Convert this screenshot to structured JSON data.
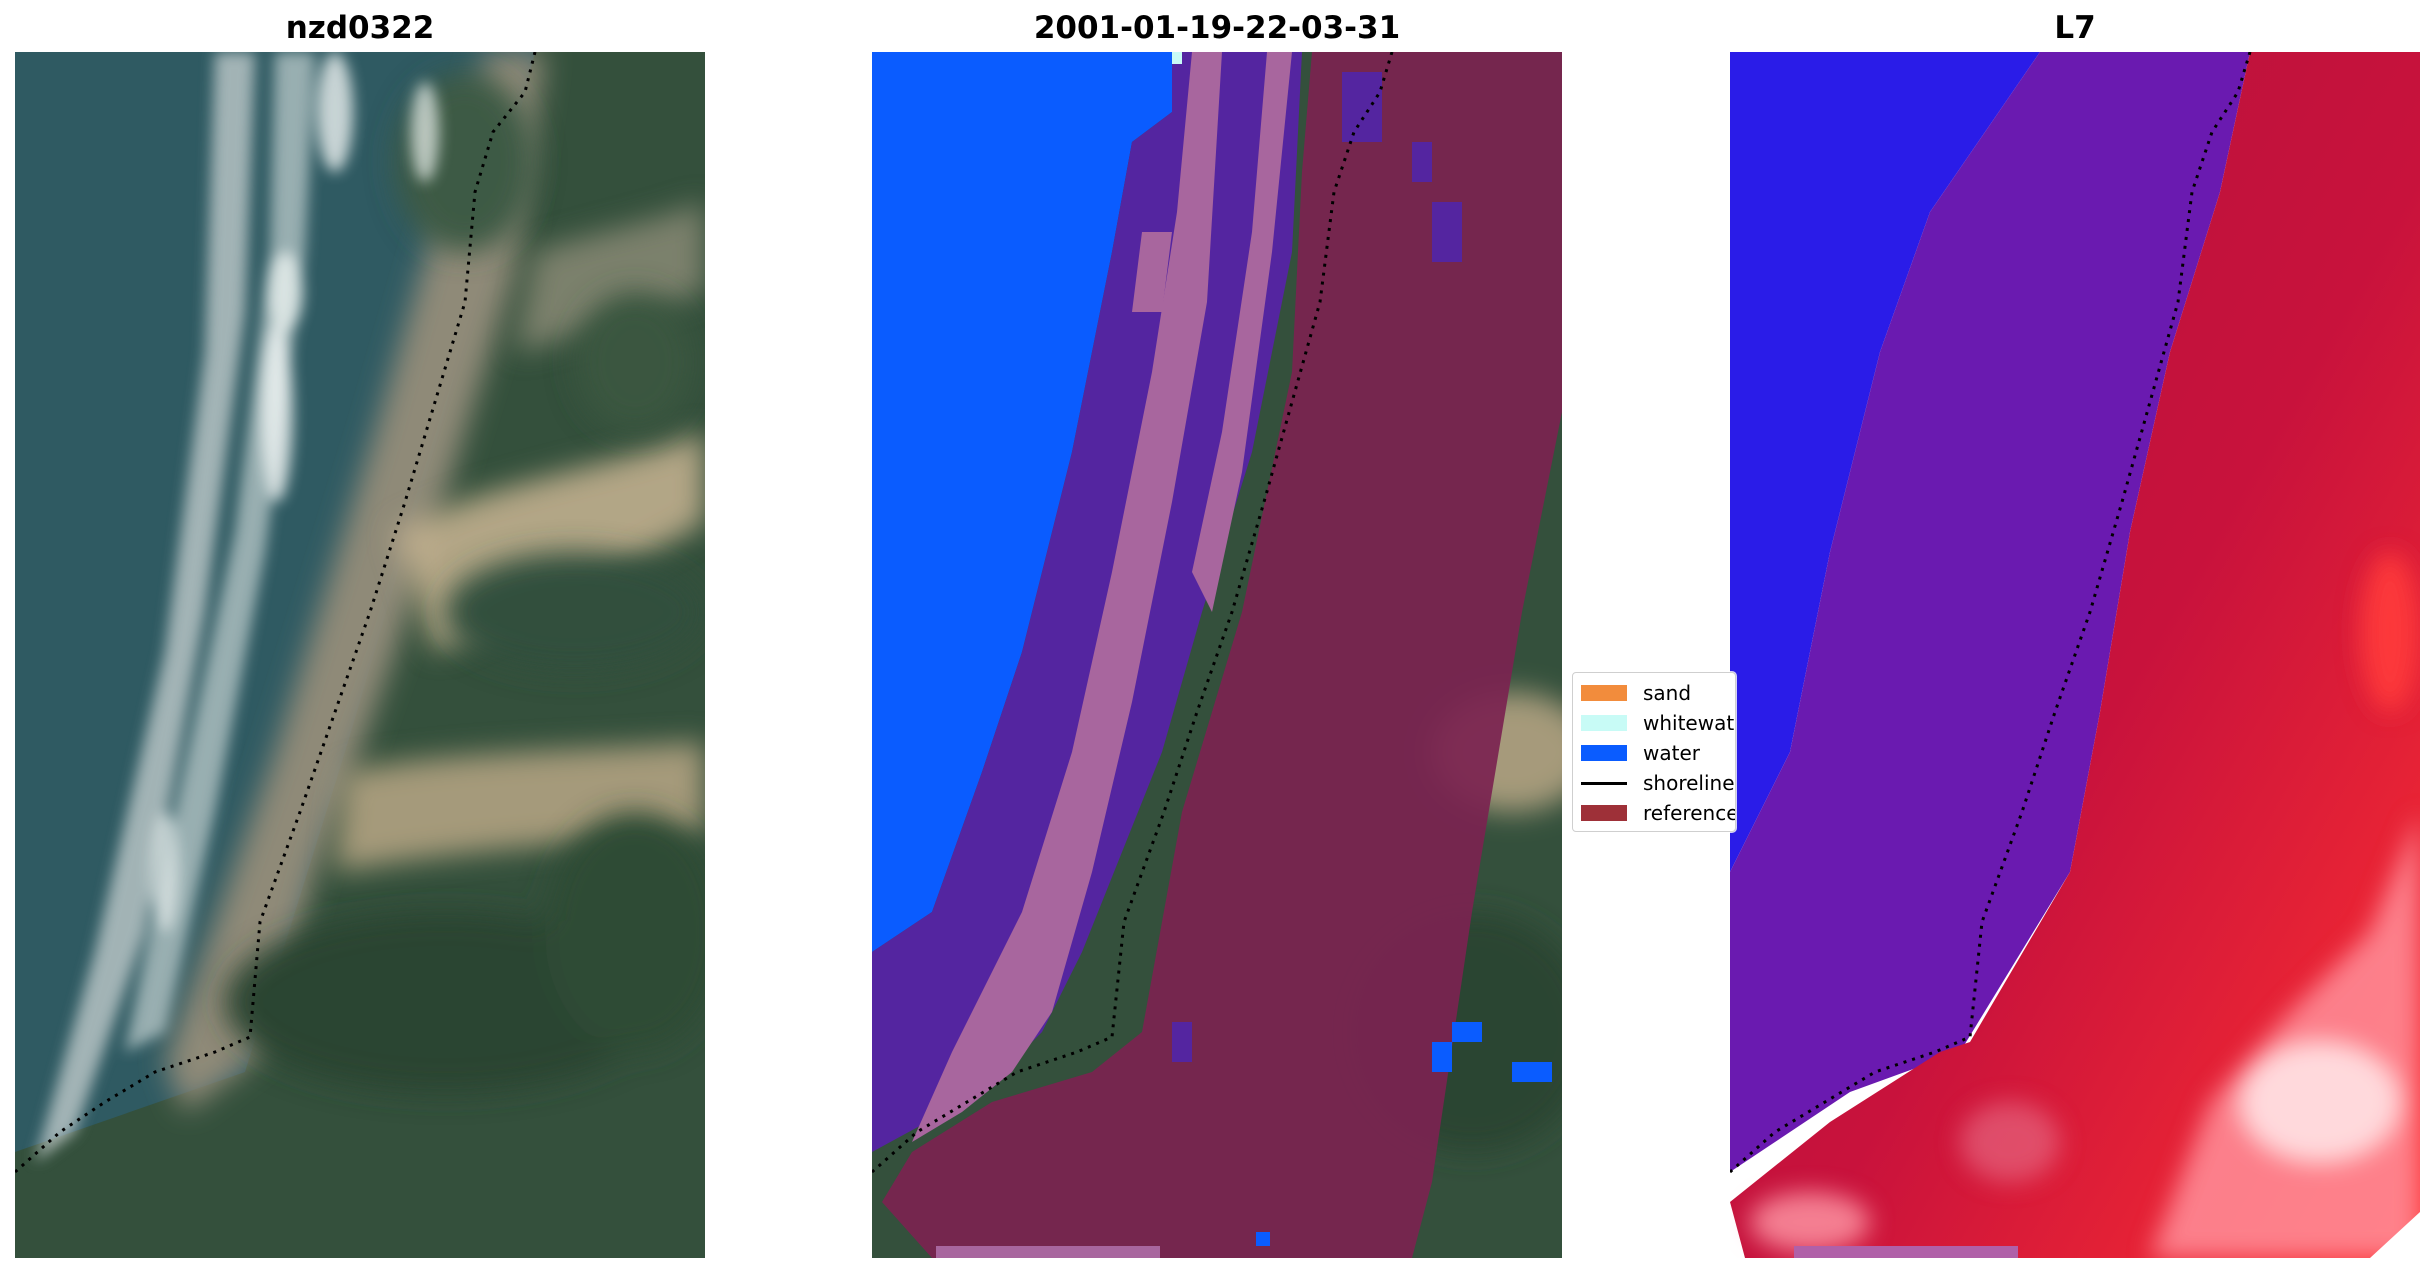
{
  "panels": {
    "image": {
      "title": "nzd0322"
    },
    "classification": {
      "title": "2001-01-19-22-03-31"
    },
    "index": {
      "title": "L7"
    }
  },
  "legend": {
    "items": [
      {
        "label": "sand",
        "color": "#f28c3c",
        "kind": "patch"
      },
      {
        "label": "whitewater",
        "color": "#c8fbf6",
        "kind": "patch"
      },
      {
        "label": "water",
        "color": "#0a5cff",
        "kind": "patch"
      },
      {
        "label": "shoreline",
        "color": "#000000",
        "kind": "line"
      },
      {
        "label": "reference",
        "color": "#9e3038",
        "kind": "patch"
      }
    ]
  },
  "colors": {
    "sea": "#2f5a62",
    "vegetation": "#2e4a35",
    "sand_beige": "#c9b593",
    "surf_white": "#dfe7e6",
    "class_water": "#0a5cff",
    "class_purple": "#5425a0",
    "class_pink": "#a8669e",
    "class_maroon": "#7b2350",
    "index_blue": "#2a1ce8",
    "index_purple": "#6a1ab0",
    "index_red": "#c8123c"
  }
}
